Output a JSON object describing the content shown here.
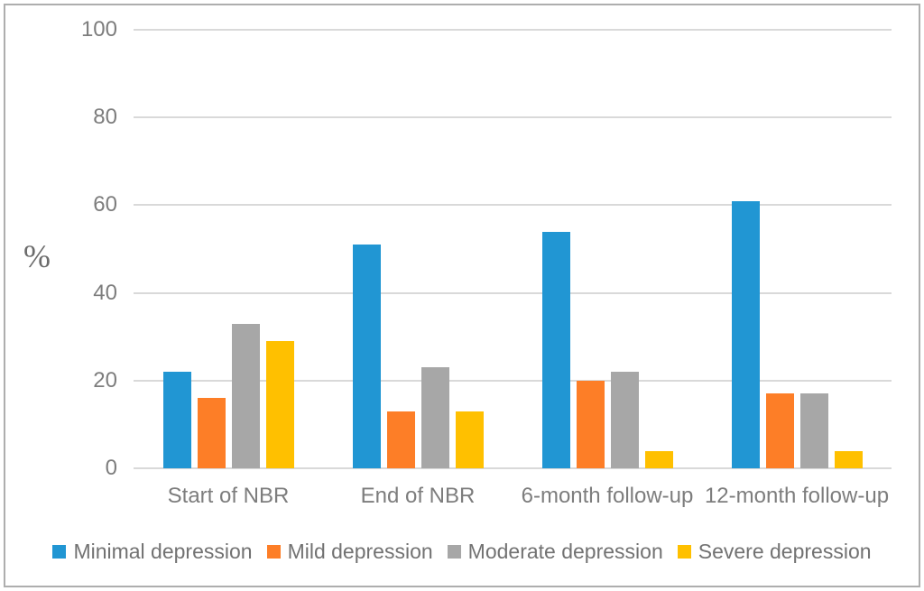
{
  "chart_data": {
    "type": "bar",
    "title": "",
    "categories": [
      "Start of NBR",
      "End of NBR",
      "6-month follow-up",
      "12-month follow-up"
    ],
    "series": [
      {
        "name": "Minimal depression",
        "color": "#2196d3",
        "values": [
          22,
          51,
          54,
          61
        ]
      },
      {
        "name": "Mild depression",
        "color": "#fd7e27",
        "values": [
          16,
          13,
          20,
          17
        ]
      },
      {
        "name": "Moderate depression",
        "color": "#a7a7a7",
        "values": [
          33,
          23,
          22,
          17
        ]
      },
      {
        "name": "Severe depression",
        "color": "#ffc000",
        "values": [
          29,
          13,
          4,
          4
        ]
      }
    ],
    "xlabel": "",
    "ylabel": "%",
    "ylim": [
      0,
      100
    ],
    "yticks": [
      0,
      20,
      40,
      60,
      80,
      100
    ],
    "grid": true,
    "legend_position": "bottom",
    "colors": {
      "gridline": "#d9d9d9",
      "tick_label": "#7d7d7d",
      "legend_text": "#727272",
      "axis_title": "#6b6b6b",
      "figure_border": "#aeaeae",
      "background": "#ffffff"
    }
  }
}
